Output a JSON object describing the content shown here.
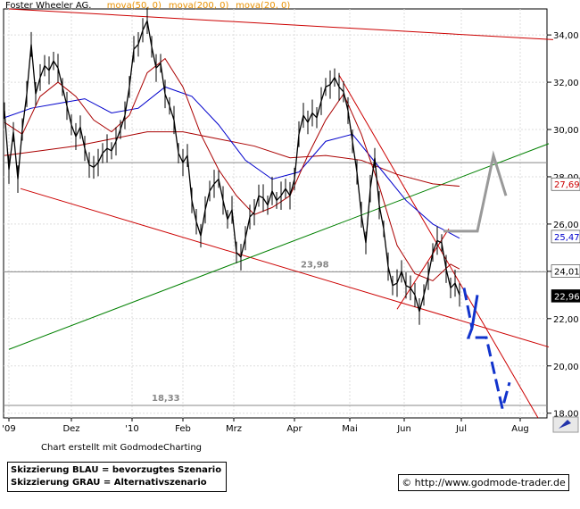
{
  "chart_data": {
    "type": "line",
    "title": "Foster Wheeler AG.",
    "indicator_labels": [
      {
        "text": "mova(50, 0)",
        "color": "#e89000"
      },
      {
        "text": "mova(200, 0)",
        "color": "#e89000"
      },
      {
        "text": "mova(20, 0)",
        "color": "#e89000"
      }
    ],
    "x_ticks": [
      "'09",
      "Dez",
      "'10",
      "Feb",
      "Mrz",
      "Apr",
      "Mai",
      "Jun",
      "Jul",
      "Aug"
    ],
    "y_ticks": [
      18,
      20,
      22,
      24,
      26,
      28,
      30,
      32,
      34
    ],
    "y_tick_labels": [
      "18,00",
      "20,00",
      "22,00",
      "24,00",
      "26,00",
      "28,00",
      "30,00",
      "32,00",
      "34,00"
    ],
    "ylim": [
      17.8,
      35.1
    ],
    "price_tags": [
      {
        "value": 27.69,
        "label": "27,69",
        "bg": "#ffffff",
        "fg": "#cc0000"
      },
      {
        "value": 25.47,
        "label": "25,47",
        "bg": "#ffffff",
        "fg": "#0000cc"
      },
      {
        "value": 24.01,
        "label": "24,01",
        "bg": "#ffffff",
        "fg": "#000000"
      },
      {
        "value": 22.96,
        "label": "22,96",
        "bg": "#000000",
        "fg": "#ffffff"
      }
    ],
    "annotations": [
      {
        "text": "23,98",
        "value": 23.98
      },
      {
        "text": "18,33",
        "value": 18.33
      }
    ],
    "price_series": [
      [
        0,
        30.8
      ],
      [
        5,
        28.3
      ],
      [
        10,
        29.9
      ],
      [
        15,
        27.9
      ],
      [
        20,
        30.0
      ],
      [
        25,
        31.5
      ],
      [
        30,
        33.6
      ],
      [
        35,
        31.5
      ],
      [
        40,
        32.2
      ],
      [
        45,
        32.7
      ],
      [
        50,
        32.5
      ],
      [
        55,
        32.9
      ],
      [
        60,
        32.6
      ],
      [
        65,
        31.8
      ],
      [
        70,
        31.0
      ],
      [
        75,
        30.2
      ],
      [
        80,
        29.7
      ],
      [
        85,
        30.1
      ],
      [
        90,
        29.2
      ],
      [
        95,
        28.5
      ],
      [
        100,
        28.4
      ],
      [
        105,
        28.6
      ],
      [
        110,
        29.0
      ],
      [
        115,
        29.2
      ],
      [
        120,
        29.1
      ],
      [
        125,
        29.5
      ],
      [
        130,
        30.0
      ],
      [
        135,
        30.6
      ],
      [
        140,
        31.8
      ],
      [
        145,
        33.4
      ],
      [
        150,
        33.6
      ],
      [
        155,
        34.2
      ],
      [
        160,
        34.6
      ],
      [
        165,
        33.5
      ],
      [
        170,
        32.6
      ],
      [
        175,
        32.8
      ],
      [
        180,
        31.5
      ],
      [
        185,
        31.0
      ],
      [
        190,
        30.4
      ],
      [
        195,
        29.0
      ],
      [
        200,
        28.6
      ],
      [
        205,
        28.9
      ],
      [
        210,
        27.0
      ],
      [
        215,
        26.1
      ],
      [
        220,
        25.5
      ],
      [
        225,
        26.6
      ],
      [
        230,
        27.4
      ],
      [
        235,
        27.7
      ],
      [
        240,
        27.9
      ],
      [
        245,
        27.0
      ],
      [
        250,
        26.2
      ],
      [
        255,
        26.6
      ],
      [
        260,
        24.8
      ],
      [
        265,
        24.6
      ],
      [
        270,
        25.4
      ],
      [
        275,
        26.3
      ],
      [
        280,
        26.5
      ],
      [
        285,
        27.2
      ],
      [
        290,
        27.1
      ],
      [
        295,
        26.8
      ],
      [
        300,
        27.4
      ],
      [
        305,
        27.0
      ],
      [
        310,
        27.2
      ],
      [
        315,
        27.5
      ],
      [
        320,
        27.2
      ],
      [
        325,
        27.9
      ],
      [
        330,
        29.8
      ],
      [
        335,
        30.6
      ],
      [
        340,
        30.3
      ],
      [
        345,
        30.7
      ],
      [
        350,
        30.5
      ],
      [
        355,
        31.2
      ],
      [
        360,
        31.8
      ],
      [
        365,
        31.9
      ],
      [
        370,
        32.2
      ],
      [
        375,
        31.8
      ],
      [
        380,
        31.6
      ],
      [
        385,
        30.8
      ],
      [
        390,
        29.5
      ],
      [
        395,
        28.2
      ],
      [
        400,
        26.4
      ],
      [
        405,
        25.2
      ],
      [
        410,
        27.5
      ],
      [
        415,
        28.8
      ],
      [
        420,
        26.8
      ],
      [
        425,
        25.8
      ],
      [
        430,
        24.2
      ],
      [
        435,
        23.4
      ],
      [
        440,
        23.5
      ],
      [
        445,
        24.0
      ],
      [
        450,
        23.4
      ],
      [
        455,
        23.3
      ],
      [
        460,
        23.0
      ],
      [
        465,
        22.3
      ],
      [
        470,
        23.0
      ],
      [
        475,
        23.8
      ],
      [
        480,
        24.8
      ],
      [
        485,
        25.3
      ],
      [
        490,
        25.2
      ],
      [
        495,
        24.1
      ],
      [
        500,
        23.3
      ],
      [
        505,
        23.5
      ],
      [
        510,
        23.0
      ]
    ],
    "ma20": [
      [
        0,
        30.3
      ],
      [
        20,
        29.8
      ],
      [
        40,
        31.4
      ],
      [
        60,
        32.0
      ],
      [
        80,
        31.4
      ],
      [
        100,
        30.4
      ],
      [
        120,
        29.9
      ],
      [
        140,
        30.6
      ],
      [
        160,
        32.4
      ],
      [
        180,
        33.0
      ],
      [
        200,
        31.8
      ],
      [
        220,
        29.8
      ],
      [
        240,
        28.3
      ],
      [
        260,
        27.2
      ],
      [
        280,
        26.4
      ],
      [
        300,
        26.7
      ],
      [
        320,
        27.2
      ],
      [
        340,
        28.9
      ],
      [
        360,
        30.4
      ],
      [
        380,
        31.5
      ],
      [
        400,
        29.8
      ],
      [
        420,
        27.6
      ],
      [
        440,
        25.1
      ],
      [
        460,
        23.9
      ],
      [
        480,
        23.6
      ],
      [
        500,
        24.3
      ],
      [
        510,
        24.1
      ]
    ],
    "ma50": [
      [
        0,
        30.5
      ],
      [
        30,
        30.9
      ],
      [
        60,
        31.1
      ],
      [
        90,
        31.3
      ],
      [
        120,
        30.7
      ],
      [
        150,
        30.9
      ],
      [
        180,
        31.8
      ],
      [
        210,
        31.4
      ],
      [
        240,
        30.2
      ],
      [
        270,
        28.7
      ],
      [
        300,
        27.9
      ],
      [
        330,
        28.2
      ],
      [
        360,
        29.5
      ],
      [
        390,
        29.8
      ],
      [
        420,
        28.4
      ],
      [
        450,
        27.0
      ],
      [
        480,
        26.0
      ],
      [
        510,
        25.4
      ]
    ],
    "ma200": [
      [
        0,
        28.9
      ],
      [
        40,
        29.1
      ],
      [
        80,
        29.3
      ],
      [
        120,
        29.6
      ],
      [
        160,
        29.9
      ],
      [
        200,
        29.9
      ],
      [
        240,
        29.6
      ],
      [
        280,
        29.3
      ],
      [
        320,
        28.8
      ],
      [
        360,
        28.9
      ],
      [
        400,
        28.7
      ],
      [
        440,
        28.1
      ],
      [
        480,
        27.7
      ],
      [
        510,
        27.6
      ]
    ],
    "trend_lines": [
      {
        "color": "#cc0000",
        "points": [
          [
            5,
            35.1
          ],
          [
            615,
            33.8
          ]
        ]
      },
      {
        "color": "#cc0000",
        "points": [
          [
            18,
            27.5
          ],
          [
            610,
            20.8
          ]
        ]
      },
      {
        "color": "#008000",
        "points": [
          [
            5,
            20.7
          ],
          [
            610,
            29.4
          ]
        ]
      },
      {
        "color": "#cc0000",
        "points": [
          [
            375,
            32.3
          ],
          [
            598,
            17.8
          ]
        ]
      },
      {
        "color": "#cc0000",
        "points": [
          [
            440,
            22.4
          ],
          [
            498,
            25.8
          ]
        ]
      }
    ],
    "horizontal_lines": [
      {
        "value": 28.6,
        "color": "#888888"
      },
      {
        "value": 23.98,
        "color": "#888888"
      },
      {
        "value": 18.33,
        "color": "#888888"
      }
    ],
    "scenario_blue": [
      [
        515,
        23.3
      ],
      [
        524,
        21.6
      ],
      [
        530,
        23.0
      ],
      [
        524,
        21.6
      ],
      [
        520,
        21.2
      ],
      [
        540,
        21.2
      ],
      [
        558,
        18.2
      ],
      [
        566,
        19.3
      ]
    ],
    "scenario_gray": [
      [
        492,
        25.7
      ],
      [
        530,
        25.7
      ],
      [
        548,
        28.9
      ],
      [
        562,
        27.2
      ]
    ]
  },
  "credit": "Chart erstellt mit GodmodeCharting",
  "legend": {
    "line1": "Skizzierung BLAU = bevorzugtes Szenario",
    "line2": "Skizzierung GRAU = Alternativszenario"
  },
  "url": "© http://www.godmode-trader.de"
}
